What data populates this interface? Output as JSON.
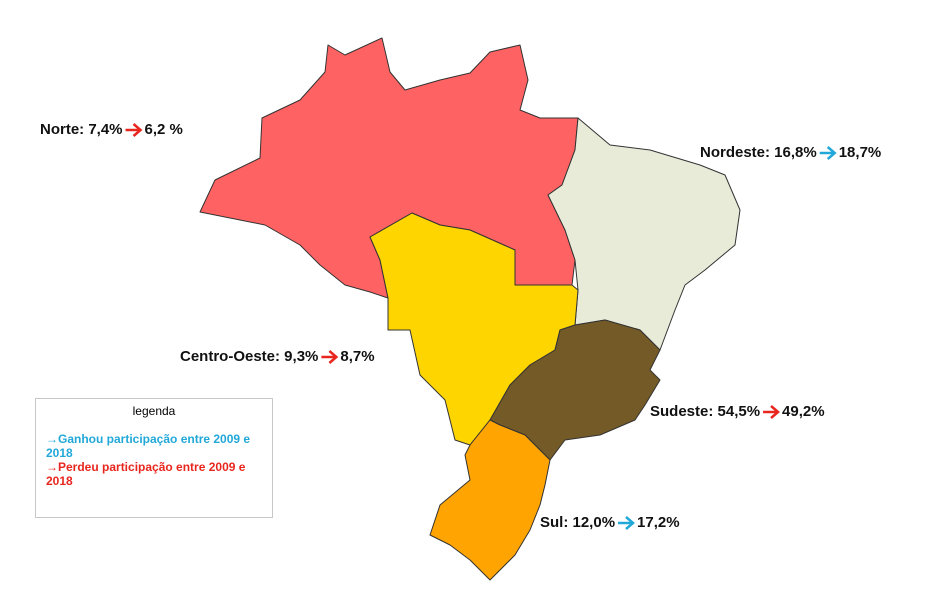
{
  "regions": [
    {
      "label": "Norte: 7,4%",
      "to": "6,2 %",
      "arrow_color": "#e8261e",
      "fill": "#ff6262"
    },
    {
      "label": "Nordeste: 16,8%",
      "to": "18,7%",
      "arrow_color": "#22a8d8",
      "fill": "#e9ebd9"
    },
    {
      "label": "Centro-Oeste: 9,3%",
      "to": "8,7%",
      "arrow_color": "#e8261e",
      "fill": "#ffd500"
    },
    {
      "label": "Sudeste: 54,5%",
      "to": "49,2%",
      "arrow_color": "#e8261e",
      "fill": "#735a27"
    },
    {
      "label": "Sul: 12,0%",
      "to": "17,2%",
      "arrow_color": "#22a8d8",
      "fill": "#ffa400"
    }
  ],
  "legend": {
    "title": "legenda",
    "items": [
      {
        "text": "→Ganhou participação entre 2009 e 2018",
        "color": "#22a8d8"
      },
      {
        "text": "→Perdeu participação entre 2009 e 2018",
        "color": "#e8261e"
      }
    ]
  }
}
